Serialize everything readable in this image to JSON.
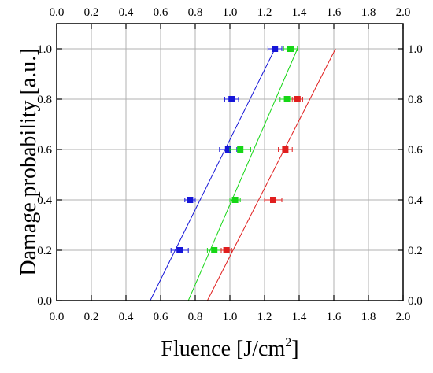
{
  "chart_data": {
    "type": "scatter",
    "xlabel": "Fluence [J/cm",
    "xlabel_superscript": "2",
    "xlabel_suffix": "]",
    "ylabel": "Damage probability [a.u.]",
    "xlim": [
      0.0,
      2.0
    ],
    "ylim": [
      0.0,
      1.1
    ],
    "x_ticks": [
      "0.0",
      "0.2",
      "0.4",
      "0.6",
      "0.8",
      "1.0",
      "1.2",
      "1.4",
      "1.6",
      "1.8",
      "2.0"
    ],
    "y_ticks": [
      "0.0",
      "0.2",
      "0.4",
      "0.6",
      "0.8",
      "1.0"
    ],
    "x_tick_values": [
      0.0,
      0.2,
      0.4,
      0.6,
      0.8,
      1.0,
      1.2,
      1.4,
      1.6,
      1.8,
      2.0
    ],
    "y_tick_values": [
      0.0,
      0.2,
      0.4,
      0.6,
      0.8,
      1.0
    ],
    "grid": true,
    "mirror_axes": true,
    "series": [
      {
        "color": "#1515d8",
        "points": [
          {
            "x": 0.71,
            "y": 0.2,
            "xerr": 0.05
          },
          {
            "x": 0.77,
            "y": 0.4,
            "xerr": 0.03
          },
          {
            "x": 0.99,
            "y": 0.6,
            "xerr": 0.05
          },
          {
            "x": 1.01,
            "y": 0.8,
            "xerr": 0.04
          },
          {
            "x": 1.26,
            "y": 1.0,
            "xerr": 0.04
          }
        ],
        "fit": [
          [
            0.54,
            0.0
          ],
          [
            1.26,
            1.0
          ]
        ]
      },
      {
        "color": "#16d616",
        "points": [
          {
            "x": 0.91,
            "y": 0.2,
            "xerr": 0.04
          },
          {
            "x": 1.03,
            "y": 0.4,
            "xerr": 0.03
          },
          {
            "x": 1.06,
            "y": 0.6,
            "xerr": 0.06
          },
          {
            "x": 1.33,
            "y": 0.8,
            "xerr": 0.04
          },
          {
            "x": 1.35,
            "y": 1.0,
            "xerr": 0.04
          }
        ],
        "fit": [
          [
            0.76,
            0.0
          ],
          [
            1.39,
            1.0
          ]
        ]
      },
      {
        "color": "#e01e1e",
        "points": [
          {
            "x": 0.98,
            "y": 0.2,
            "xerr": 0.03
          },
          {
            "x": 1.25,
            "y": 0.4,
            "xerr": 0.05
          },
          {
            "x": 1.32,
            "y": 0.6,
            "xerr": 0.04
          },
          {
            "x": 1.39,
            "y": 0.8,
            "xerr": 0.03
          }
        ],
        "fit": [
          [
            0.87,
            0.0
          ],
          [
            1.61,
            1.0
          ]
        ]
      }
    ]
  }
}
